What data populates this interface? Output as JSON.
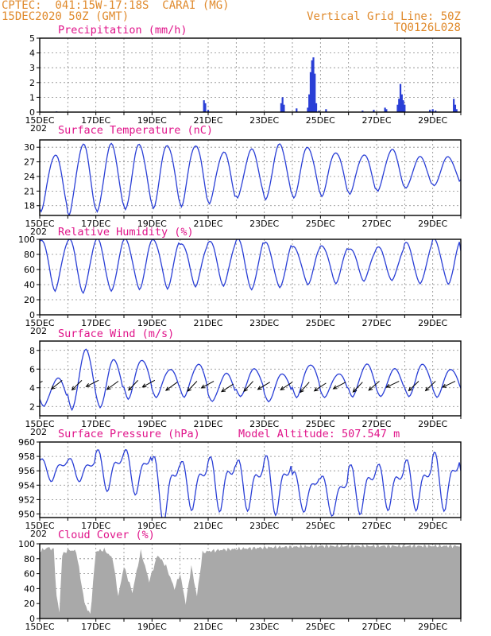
{
  "header": {
    "line1": "CPTEC:  041:15W-17:18S  CARAI (MG)",
    "line2": "15DEC2020 50Z (GMT)",
    "grid_line": "Vertical Grid Line: 50Z",
    "code": "TQ0126L028"
  },
  "x_tick_labels": [
    "15DEC",
    "17DEC",
    "19DEC",
    "21DEC",
    "23DEC",
    "25DEC",
    "27DEC",
    "29DEC"
  ],
  "x_cut_label": "202",
  "model_altitude": "Model Altitude: 507.547 m",
  "colors": {
    "series": "#2a3fd6",
    "title": "#e0148a",
    "header": "#e08a2c",
    "cloud": "#a9a9a9"
  },
  "chart_data": [
    {
      "type": "bar",
      "title": "Precipitation (mm/h)",
      "xlabel": "",
      "ylabel": "",
      "ylim": [
        0,
        5
      ],
      "yticks": [
        0,
        1,
        2,
        3,
        4,
        5
      ],
      "days": [
        15,
        30
      ],
      "events": [
        [
          15.6,
          0.05
        ],
        [
          20.85,
          0.8
        ],
        [
          20.9,
          0.6
        ],
        [
          21.0,
          0.15
        ],
        [
          23.6,
          0.6
        ],
        [
          23.65,
          1.0
        ],
        [
          23.7,
          0.5
        ],
        [
          24.15,
          0.25
        ],
        [
          24.55,
          0.3
        ],
        [
          24.6,
          1.2
        ],
        [
          24.65,
          2.7
        ],
        [
          24.7,
          3.5
        ],
        [
          24.75,
          3.7
        ],
        [
          24.8,
          2.6
        ],
        [
          24.85,
          0.6
        ],
        [
          24.95,
          0.1
        ],
        [
          25.2,
          0.2
        ],
        [
          26.5,
          0.1
        ],
        [
          26.9,
          0.15
        ],
        [
          27.3,
          0.3
        ],
        [
          27.35,
          0.2
        ],
        [
          27.75,
          0.5
        ],
        [
          27.8,
          0.9
        ],
        [
          27.85,
          1.9
        ],
        [
          27.9,
          1.2
        ],
        [
          27.95,
          0.8
        ],
        [
          28.0,
          0.5
        ],
        [
          28.9,
          0.15
        ],
        [
          29.0,
          0.2
        ],
        [
          29.1,
          0.1
        ],
        [
          29.75,
          0.9
        ],
        [
          29.8,
          0.5
        ],
        [
          29.85,
          0.2
        ]
      ]
    },
    {
      "type": "line",
      "title": "Surface Temperature (nC)",
      "xlabel": "",
      "ylabel": "",
      "ylim": [
        16,
        31.5
      ],
      "yticks": [
        18,
        21,
        24,
        27,
        30
      ],
      "days": [
        15,
        30
      ],
      "max": [
        28.5,
        30.5,
        30.5,
        30.5,
        30.5,
        30.5,
        29.0,
        29.5,
        30.5,
        30.0,
        29.0,
        28.5,
        29.5,
        28.0,
        28.0,
        29.0
      ],
      "min": [
        17.0,
        16.0,
        16.5,
        17.0,
        17.5,
        18.0,
        18.5,
        19.5,
        19.0,
        19.5,
        20.0,
        20.5,
        21.0,
        21.5,
        22.0,
        23.0
      ]
    },
    {
      "type": "line",
      "title": "Relative Humidity (%)",
      "xlabel": "",
      "ylabel": "",
      "ylim": [
        0,
        100
      ],
      "yticks": [
        0,
        20,
        40,
        60,
        80,
        100
      ],
      "days": [
        15,
        30
      ],
      "max": [
        100,
        100,
        100,
        100,
        100,
        95,
        98,
        100,
        95,
        90,
        92,
        88,
        90,
        95,
        100,
        85
      ],
      "min": [
        32,
        28,
        30,
        33,
        35,
        38,
        38,
        32,
        35,
        40,
        42,
        45,
        45,
        40,
        40,
        48
      ]
    },
    {
      "type": "line",
      "title": "Surface Wind (m/s)",
      "xlabel": "",
      "ylabel": "",
      "ylim": [
        1,
        9
      ],
      "yticks": [
        2,
        4,
        6,
        8
      ],
      "days": [
        15,
        30
      ],
      "max": [
        5.0,
        8.0,
        7.0,
        7.0,
        6.0,
        6.5,
        5.5,
        6.0,
        5.5,
        6.5,
        5.5,
        6.5,
        6.0,
        6.5,
        6.0,
        5.0
      ],
      "min": [
        2.0,
        1.5,
        1.8,
        2.8,
        3.0,
        3.0,
        2.5,
        3.0,
        2.5,
        3.0,
        3.0,
        3.0,
        3.0,
        3.0,
        3.0,
        3.5
      ],
      "arrows": [
        [
          15.1,
          4.7
        ],
        [
          15.8,
          4.8
        ],
        [
          16.5,
          4.8
        ],
        [
          17.1,
          4.8
        ],
        [
          17.8,
          4.7
        ],
        [
          18.5,
          4.8
        ],
        [
          19.1,
          4.8
        ],
        [
          19.9,
          4.6
        ],
        [
          20.6,
          4.7
        ],
        [
          21.2,
          4.7
        ],
        [
          21.9,
          4.4
        ],
        [
          22.6,
          4.7
        ],
        [
          23.2,
          4.6
        ],
        [
          24.0,
          4.6
        ],
        [
          24.6,
          4.6
        ],
        [
          25.2,
          4.5
        ],
        [
          25.9,
          4.6
        ],
        [
          26.5,
          4.6
        ],
        [
          27.1,
          4.7
        ],
        [
          27.8,
          4.7
        ],
        [
          28.5,
          4.7
        ],
        [
          29.1,
          4.7
        ],
        [
          29.8,
          4.7
        ]
      ]
    },
    {
      "type": "line",
      "title": "Surface Pressure (hPa)",
      "xlabel": "",
      "ylabel": "",
      "ylim": [
        949.5,
        960
      ],
      "yticks": [
        950,
        952,
        954,
        956,
        958,
        960
      ],
      "days": [
        15,
        30
      ],
      "max": [
        957.5,
        957.5,
        958.5,
        958.5,
        957.5,
        957.0,
        957.5,
        957.0,
        957.5,
        955.5,
        955.0,
        956.5,
        956.5,
        957.0,
        958.0,
        956.0
      ],
      "min": [
        955.0,
        955.0,
        954.0,
        953.5,
        950.0,
        951.5,
        951.5,
        951.5,
        951.0,
        951.0,
        950.5,
        951.0,
        951.5,
        951.5,
        951.5,
        952.5
      ]
    },
    {
      "type": "area",
      "title": "Cloud Cover (%)",
      "xlabel": "",
      "ylabel": "",
      "ylim": [
        0,
        100
      ],
      "yticks": [
        0,
        20,
        40,
        60,
        80,
        100
      ],
      "days": [
        15,
        30
      ],
      "profile": [
        [
          15.0,
          90
        ],
        [
          15.3,
          95
        ],
        [
          15.5,
          92
        ],
        [
          15.6,
          30
        ],
        [
          15.7,
          8
        ],
        [
          15.8,
          85
        ],
        [
          16.0,
          92
        ],
        [
          16.3,
          90
        ],
        [
          16.6,
          20
        ],
        [
          16.8,
          5
        ],
        [
          17.0,
          90
        ],
        [
          17.3,
          92
        ],
        [
          17.6,
          80
        ],
        [
          17.8,
          30
        ],
        [
          18.0,
          70
        ],
        [
          18.3,
          35
        ],
        [
          18.6,
          90
        ],
        [
          18.9,
          50
        ],
        [
          19.2,
          85
        ],
        [
          19.5,
          70
        ],
        [
          19.8,
          40
        ],
        [
          20.0,
          60
        ],
        [
          20.2,
          20
        ],
        [
          20.4,
          70
        ],
        [
          20.6,
          30
        ],
        [
          20.8,
          88
        ],
        [
          21.0,
          90
        ],
        [
          21.5,
          92
        ],
        [
          22.0,
          93
        ],
        [
          23.0,
          95
        ],
        [
          24.0,
          96
        ],
        [
          25.0,
          97
        ],
        [
          26.0,
          97
        ],
        [
          27.0,
          97
        ],
        [
          28.0,
          97
        ],
        [
          29.0,
          97
        ],
        [
          30.0,
          97
        ]
      ]
    }
  ]
}
